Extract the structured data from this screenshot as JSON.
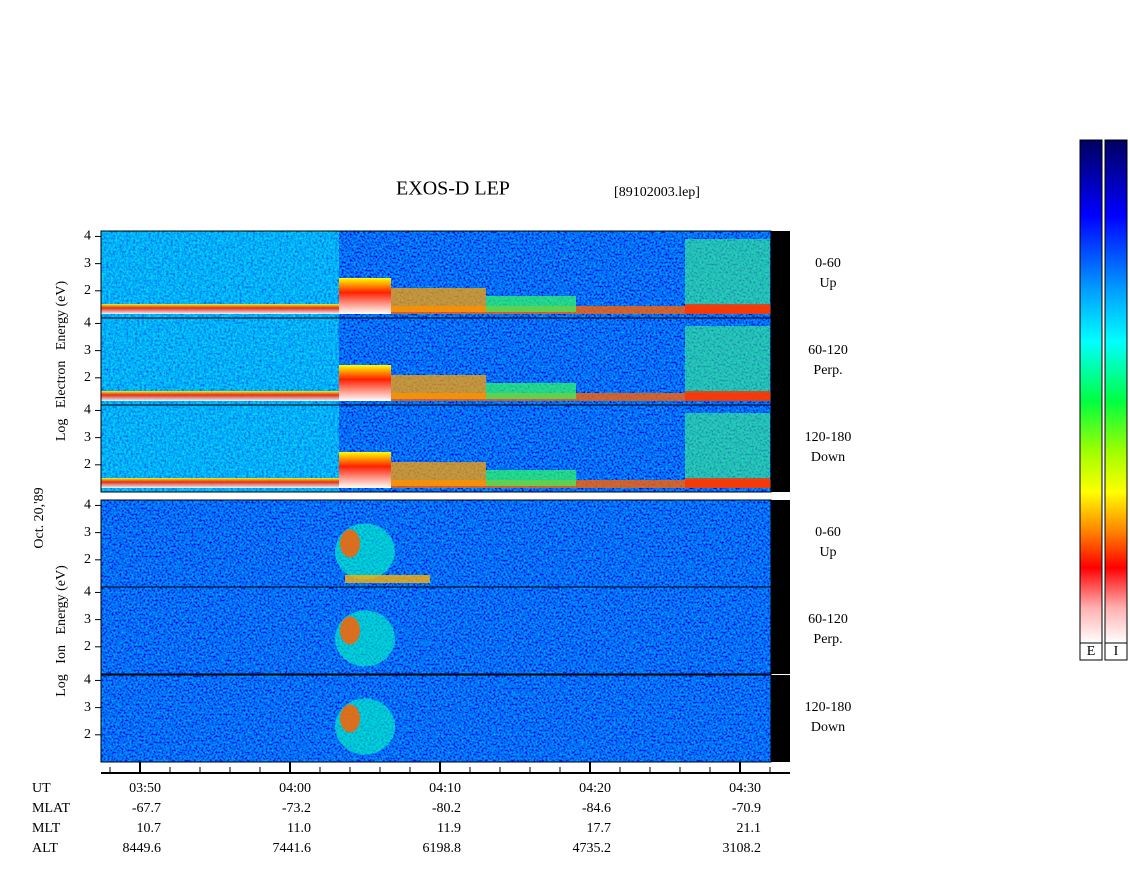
{
  "header": {
    "title": "EXOS-D LEP",
    "file": "[89102003.lep]"
  },
  "date": "Oct. 20,'89",
  "electron": {
    "axis_label": "Log   Electron   Energy (eV)",
    "panels": [
      {
        "range": "0-60",
        "direction": "Up"
      },
      {
        "range": "60-120",
        "direction": "Perp."
      },
      {
        "range": "120-180",
        "direction": "Down"
      }
    ]
  },
  "ion": {
    "axis_label": "Log   Ion   Energy (eV)",
    "panels": [
      {
        "range": "0-60",
        "direction": "Up"
      },
      {
        "range": "60-120",
        "direction": "Perp."
      },
      {
        "range": "120-180",
        "direction": "Down"
      }
    ]
  },
  "ylim": [
    1,
    4.2
  ],
  "yticks": [
    2,
    3,
    4
  ],
  "orbit": {
    "rows": [
      [
        "UT",
        "03:50",
        "04:00",
        "04:10",
        "04:20",
        "04:30"
      ],
      [
        "MLAT",
        "-67.7",
        "-73.2",
        "-80.2",
        "-84.6",
        "-70.9"
      ],
      [
        "MLT",
        "10.7",
        "11.0",
        "11.9",
        "17.7",
        "21.1"
      ],
      [
        "ALT",
        "8449.6",
        "7441.6",
        "6198.8",
        "4735.2",
        "3108.2"
      ]
    ]
  },
  "colorbars": [
    "E",
    "I"
  ]
}
